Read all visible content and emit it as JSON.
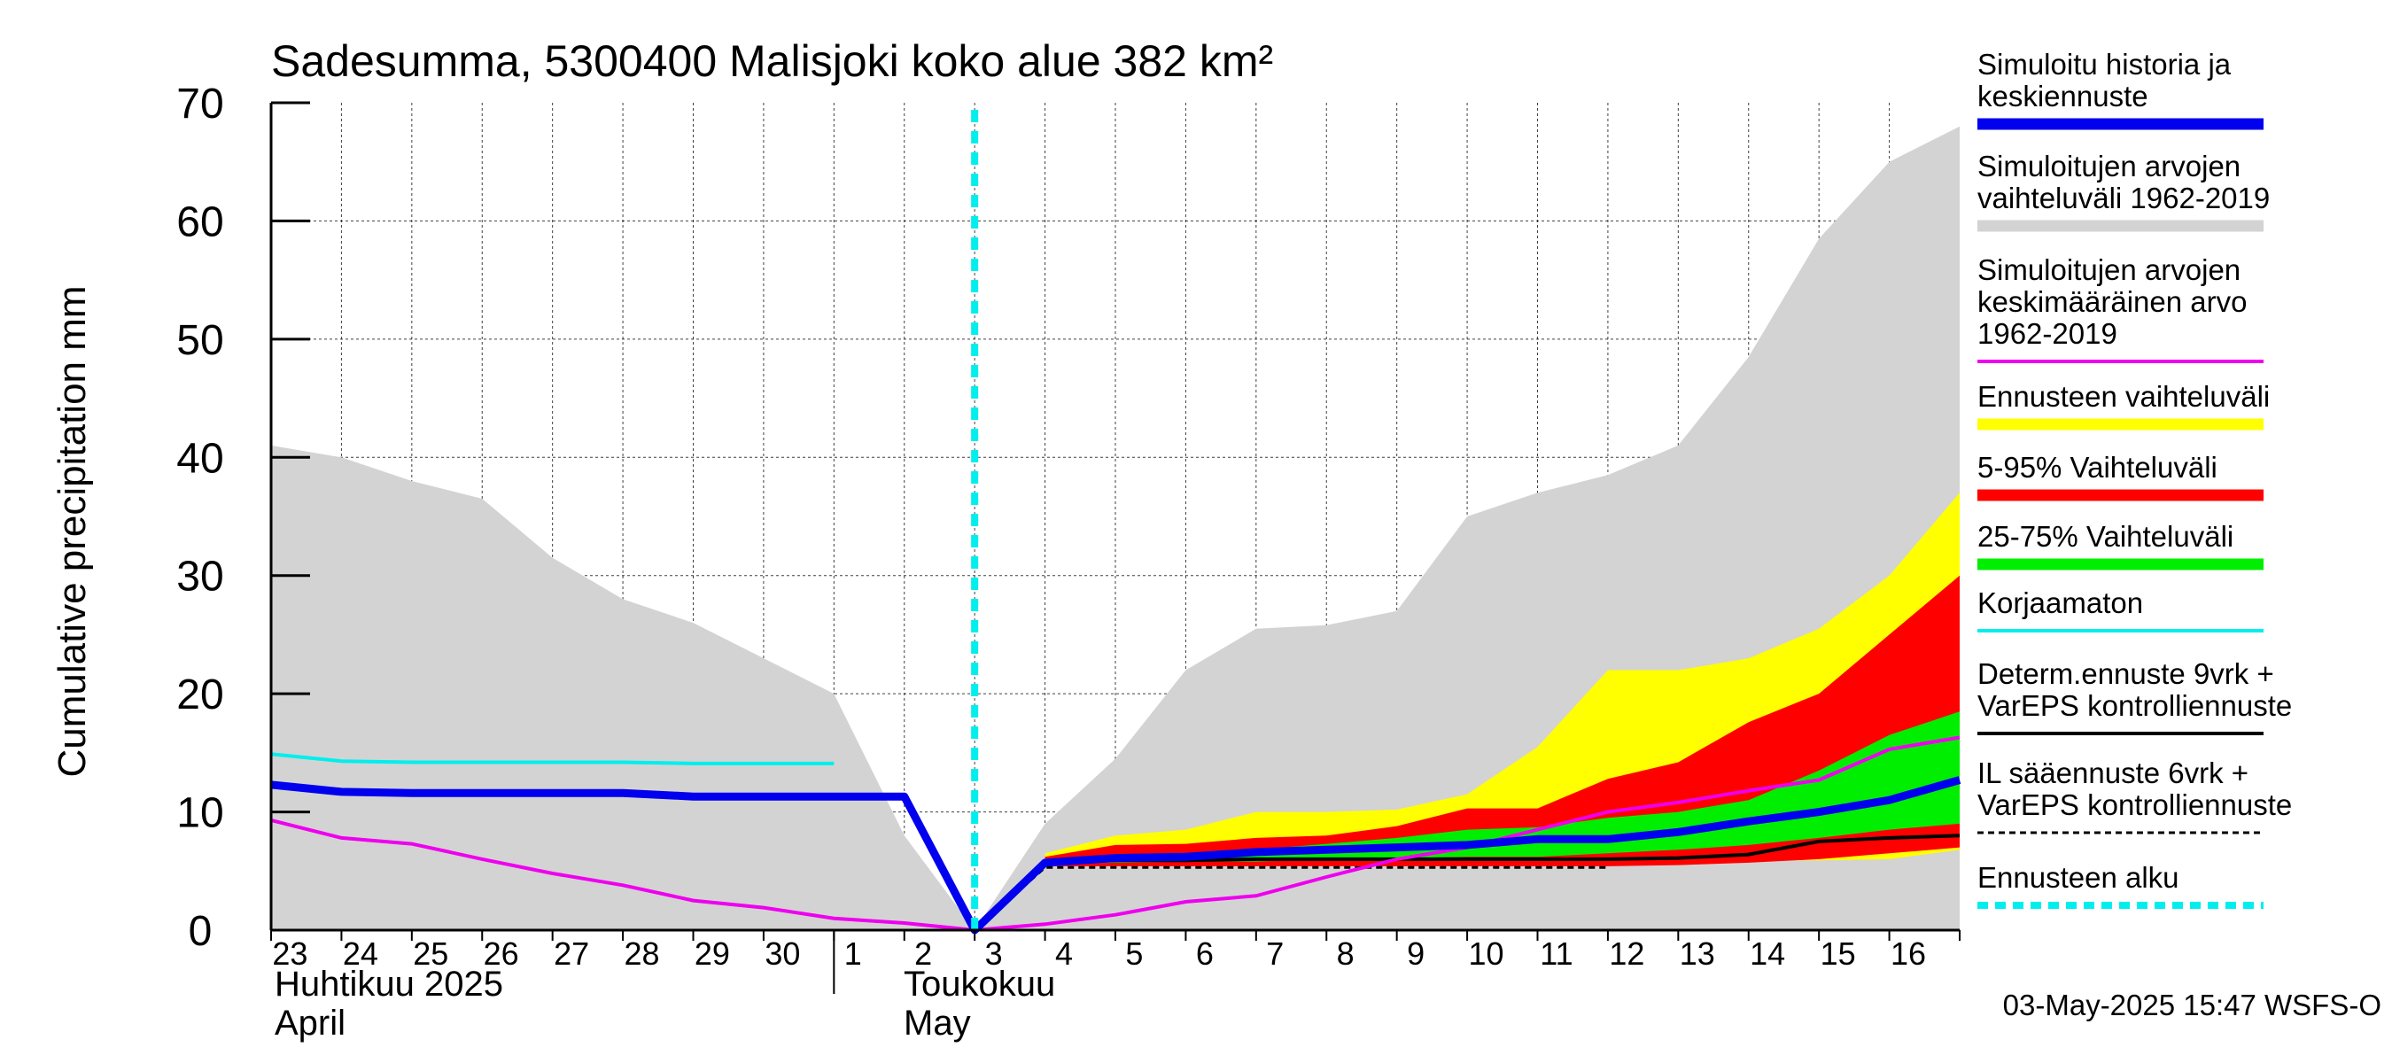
{
  "chart_data": {
    "type": "area",
    "title": "Sadesumma, 5300400 Malisjoki koko alue 382 km²",
    "ylabel": "Cumulative precipitation   mm",
    "ylim": [
      0,
      70
    ],
    "yticks": [
      0,
      10,
      20,
      30,
      40,
      50,
      60,
      70
    ],
    "x_day_labels": [
      "23",
      "24",
      "25",
      "26",
      "27",
      "28",
      "29",
      "30",
      "1",
      "2",
      "3",
      "4",
      "5",
      "6",
      "7",
      "8",
      "9",
      "10",
      "11",
      "12",
      "13",
      "14",
      "15",
      "16"
    ],
    "month_labels": {
      "april_fi": "Huhtikuu  2025",
      "april_en": "April",
      "may_fi": "Toukokuu",
      "may_en": "May"
    },
    "x_note": "x = days since 23 April 2025 00:00; forecast start at x = 10.0 (3 May)",
    "forecast_start_x": 10,
    "series": {
      "sim_range": {
        "name": "Simuloitujen arvojen vaihteluväli 1962-2019",
        "color": "#d3d3d3",
        "x": [
          0,
          1,
          2,
          3,
          4,
          5,
          6,
          7,
          8,
          9,
          10,
          11,
          12,
          13,
          14,
          15,
          16,
          17,
          18,
          19,
          20,
          21,
          22,
          23,
          24
        ],
        "lower": [
          0,
          0,
          0,
          0,
          0,
          0,
          0,
          0,
          0,
          0,
          0,
          0,
          0,
          0,
          0,
          0,
          0,
          0,
          0,
          0,
          0,
          0,
          0,
          0,
          0
        ],
        "upper": [
          41,
          40,
          38,
          36.5,
          31.5,
          28,
          26,
          23,
          20,
          8,
          0,
          9,
          14.5,
          22,
          25.5,
          25.8,
          27,
          35,
          37,
          38.5,
          41,
          48.5,
          58.5,
          65,
          68
        ]
      },
      "forecast_full": {
        "name": "Ennusteen vaihteluväli",
        "color": "#ffff00",
        "x": [
          11,
          12,
          13,
          14,
          15,
          16,
          17,
          18,
          19,
          20,
          21,
          22,
          23,
          24
        ],
        "lower": [
          5.8,
          5.9,
          5.9,
          5.9,
          5.9,
          5.9,
          5.9,
          5.9,
          5.9,
          5.9,
          5.9,
          5.9,
          6,
          6.8
        ],
        "upper": [
          6.5,
          8,
          8.5,
          10,
          10,
          10.2,
          11.5,
          15.5,
          22,
          22,
          23,
          25.5,
          30,
          37
        ]
      },
      "p5_95": {
        "name": "5-95% Vaihteluväli",
        "color": "#ff0000",
        "x": [
          11,
          12,
          13,
          14,
          15,
          16,
          17,
          18,
          19,
          20,
          21,
          22,
          23,
          24
        ],
        "lower": [
          5.4,
          5.4,
          5.4,
          5.4,
          5.4,
          5.4,
          5.4,
          5.4,
          5.4,
          5.5,
          5.7,
          6,
          6.5,
          7
        ],
        "upper": [
          6.2,
          7.2,
          7.3,
          7.8,
          8,
          8.8,
          10.3,
          10.3,
          12.8,
          14.2,
          17.6,
          20,
          25,
          30
        ]
      },
      "p25_75": {
        "name": "25-75% Vaihteluväli",
        "color": "#00ee00",
        "x": [
          11,
          12,
          13,
          14,
          15,
          16,
          17,
          18,
          19,
          20,
          21,
          22,
          23,
          24
        ],
        "lower": [
          5.6,
          5.7,
          5.8,
          5.8,
          6,
          6.1,
          6.2,
          6.2,
          6.5,
          6.8,
          7.2,
          7.8,
          8.5,
          9
        ],
        "upper": [
          5.8,
          6.3,
          6.5,
          6.8,
          7.3,
          7.8,
          8.5,
          8.7,
          9.5,
          10,
          11,
          13.5,
          16.5,
          18.5
        ]
      },
      "sim_history_mean": {
        "name": "Simuloitu historia ja keskiennuste",
        "color": "#0000ee",
        "x": [
          0,
          1,
          2,
          3,
          4,
          5,
          6,
          7,
          8,
          9,
          10,
          11,
          12,
          13,
          14,
          15,
          16,
          17,
          18,
          19,
          20,
          21,
          22,
          23,
          24
        ],
        "y": [
          12.3,
          11.7,
          11.6,
          11.6,
          11.6,
          11.6,
          11.3,
          11.3,
          11.3,
          11.3,
          0,
          5.7,
          6.1,
          6.2,
          6.6,
          6.8,
          7,
          7.2,
          7.7,
          7.7,
          8.3,
          9.2,
          10,
          11,
          12.7
        ]
      },
      "sim_mean_1962_2019": {
        "name": "Simuloitujen arvojen keskimääräinen arvo 1962-2019",
        "color": "#ee00ee",
        "x": [
          0,
          1,
          2,
          3,
          4,
          5,
          6,
          7,
          8,
          9,
          10,
          11,
          12,
          13,
          14,
          15,
          16,
          17,
          18,
          19,
          20,
          21,
          22,
          23,
          24
        ],
        "y": [
          9.3,
          7.8,
          7.3,
          6,
          4.8,
          3.8,
          2.5,
          1.9,
          1,
          0.6,
          0,
          0.5,
          1.3,
          2.4,
          2.9,
          4.5,
          6,
          7,
          8.5,
          10,
          10.8,
          11.8,
          12.7,
          15.3,
          16.3
        ]
      },
      "korjaamaton": {
        "name": "Korjaamaton",
        "color": "#00eeee",
        "x": [
          0,
          1,
          2,
          3,
          4,
          5,
          6,
          7,
          8
        ],
        "y": [
          14.9,
          14.3,
          14.2,
          14.2,
          14.2,
          14.2,
          14.1,
          14.1,
          14.1
        ]
      },
      "determ": {
        "name": "Determ.ennuste 9vrk + VarEPS kontrolliennuste",
        "color": "#000000",
        "x": [
          10,
          11,
          12,
          13,
          14,
          15,
          16,
          17,
          18,
          19,
          20,
          21,
          22,
          23,
          24
        ],
        "y": [
          0,
          5.7,
          5.9,
          5.9,
          6,
          6,
          6,
          6,
          6,
          6,
          6.1,
          6.4,
          7.5,
          7.8,
          8
        ]
      },
      "il_forecast": {
        "name": "IL sääennuste 6vrk  +  VarEPS kontrolliennuste",
        "color": "#000000",
        "x": [
          10,
          11,
          12,
          13,
          14,
          15,
          16,
          17,
          18,
          19
        ],
        "y": [
          0,
          5.3,
          5.3,
          5.3,
          5.3,
          5.3,
          5.3,
          5.3,
          5.3,
          5.3
        ]
      }
    },
    "legend": [
      {
        "key": "sim_history_mean",
        "lines": [
          "Simuloitu historia ja",
          "keskiennuste"
        ],
        "style": "thick",
        "color": "#0000ee"
      },
      {
        "key": "sim_range",
        "lines": [
          "Simuloitujen arvojen",
          "vaihteluväli 1962-2019"
        ],
        "style": "thick",
        "color": "#d3d3d3"
      },
      {
        "key": "sim_mean_1962_2019",
        "lines": [
          "Simuloitujen arvojen",
          "keskimääräinen arvo",
          "   1962-2019"
        ],
        "style": "thin",
        "color": "#ee00ee"
      },
      {
        "key": "forecast_full",
        "lines": [
          "Ennusteen vaihteluväli"
        ],
        "style": "thick",
        "color": "#ffff00"
      },
      {
        "key": "p5_95",
        "lines": [
          "5-95% Vaihteluväli"
        ],
        "style": "thick",
        "color": "#ff0000"
      },
      {
        "key": "p25_75",
        "lines": [
          "25-75% Vaihteluväli"
        ],
        "style": "thick",
        "color": "#00ee00"
      },
      {
        "key": "korjaamaton",
        "lines": [
          "Korjaamaton"
        ],
        "style": "thin",
        "color": "#00eeee"
      },
      {
        "key": "determ",
        "lines": [
          "Determ.ennuste 9vrk +",
          "VarEPS kontrolliennuste"
        ],
        "style": "thin",
        "color": "#000000"
      },
      {
        "key": "il_forecast",
        "lines": [
          "IL sääennuste 6vrk  +",
          "  VarEPS kontrolliennuste"
        ],
        "style": "dashed",
        "color": "#000000"
      },
      {
        "key": "forecast_start",
        "lines": [
          "Ennusteen alku"
        ],
        "style": "dotted",
        "color": "#00eeee"
      }
    ],
    "footer_timestamp": "03-May-2025 15:47 WSFS-O"
  }
}
